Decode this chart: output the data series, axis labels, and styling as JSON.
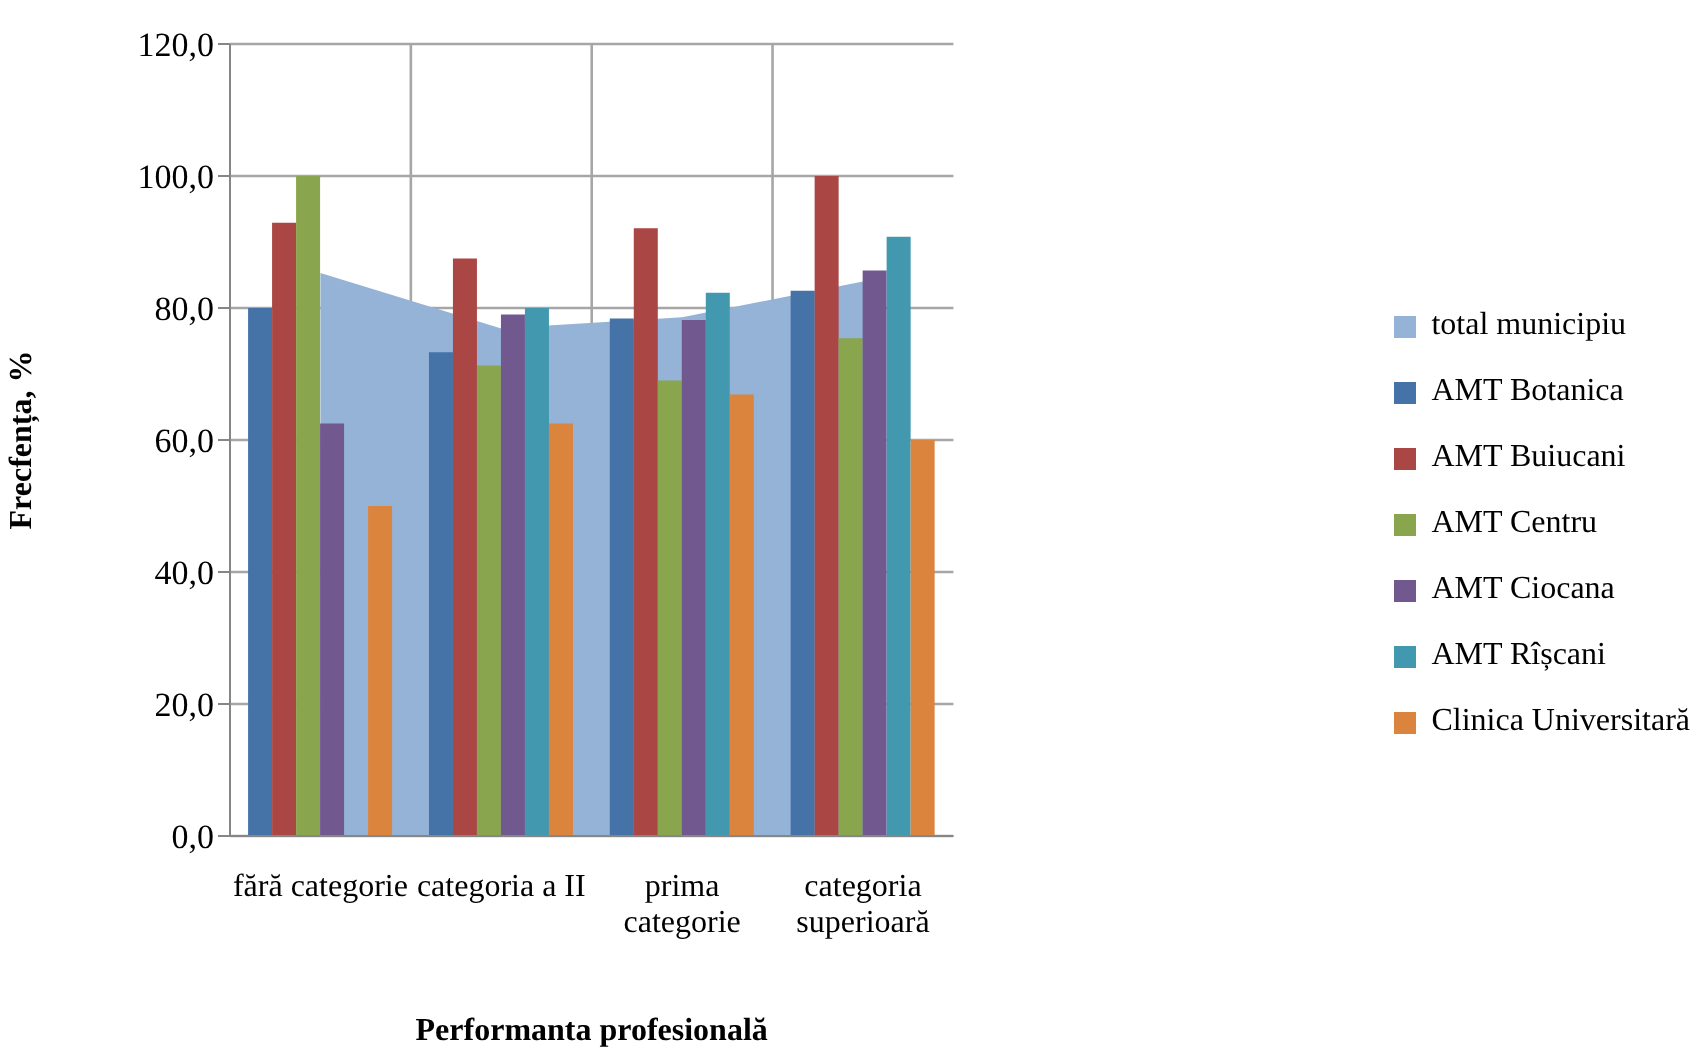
{
  "chart_data": {
    "type": "bar",
    "xlabel": "Performanta profesională",
    "ylabel": "Frecfența, %",
    "categories": [
      "fără categorie",
      "categoria a II",
      "prima categorie",
      "categoria superioară"
    ],
    "series": [
      {
        "name": "total municipiu",
        "type": "area",
        "color": "#95b3d7",
        "values": [
          85.3,
          76.9,
          78.6,
          84.0
        ]
      },
      {
        "name": "AMT Botanica",
        "color": "#4572a7",
        "values": [
          80.0,
          73.3,
          78.4,
          82.6
        ]
      },
      {
        "name": "AMT Buiucani",
        "color": "#aa4643",
        "values": [
          92.9,
          87.5,
          92.1,
          100.0
        ]
      },
      {
        "name": "AMT Centru",
        "color": "#89a54e",
        "values": [
          100.0,
          71.3,
          69.0,
          75.4
        ]
      },
      {
        "name": "AMT Ciocana",
        "color": "#71588f",
        "values": [
          62.5,
          79.0,
          78.2,
          85.7
        ]
      },
      {
        "name": "AMT Rîșcani",
        "color": "#4198af",
        "values": [
          null,
          80.0,
          82.3,
          90.8
        ]
      },
      {
        "name": "Clinica Universitară",
        "color": "#db843d",
        "values": [
          50.0,
          62.5,
          66.9,
          60.0
        ]
      }
    ],
    "ylim": [
      0,
      120
    ],
    "yticks": [
      {
        "value": 0,
        "label": "0,0"
      },
      {
        "value": 20,
        "label": "20,0"
      },
      {
        "value": 40,
        "label": "40,0"
      },
      {
        "value": 60,
        "label": "60,0"
      },
      {
        "value": 80,
        "label": "80,0"
      },
      {
        "value": 100,
        "label": "100,0"
      },
      {
        "value": 120,
        "label": "120,0"
      }
    ],
    "grid": true,
    "legend": "right"
  }
}
